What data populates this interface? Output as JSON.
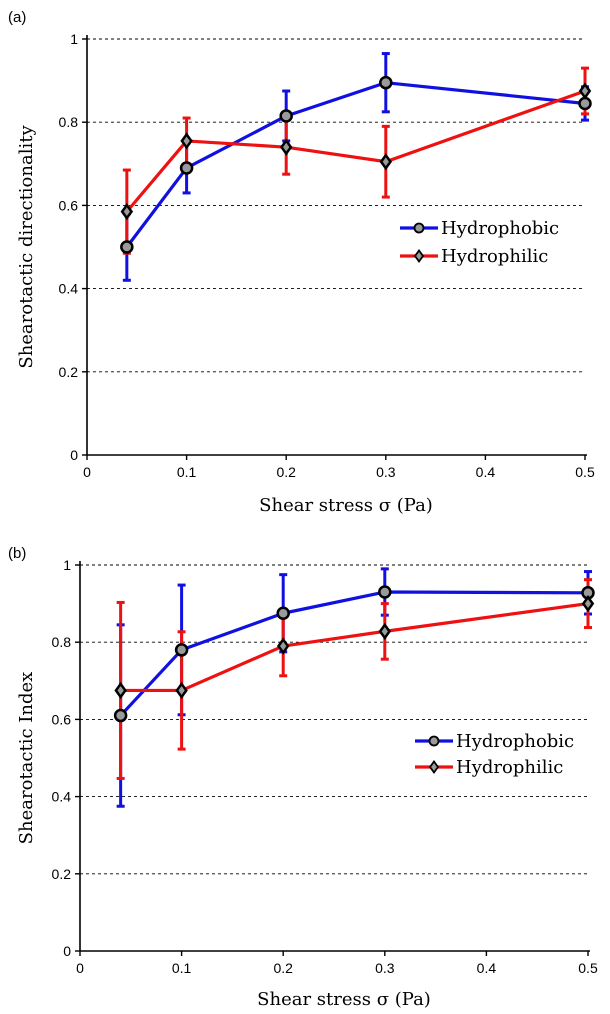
{
  "chart_data": [
    {
      "type": "line",
      "panel_label": "(a)",
      "xlabel": "Shear stress σ (Pa)",
      "ylabel": "Shearotactic directionality",
      "xlim": [
        0,
        0.5
      ],
      "ylim": [
        0,
        1
      ],
      "xticks": [
        0,
        0.1,
        0.2,
        0.3,
        0.4,
        0.5
      ],
      "xtick_labels": [
        "0",
        "0.1",
        "0.2",
        "0.3",
        "0.4",
        "0.5"
      ],
      "yticks": [
        0,
        0.2,
        0.4,
        0.6,
        0.8,
        1
      ],
      "ytick_labels": [
        "0",
        "0.2",
        "0.4",
        "0.6",
        "0.8",
        "1"
      ],
      "grid": "horizontal dashed",
      "legend_position": "right-middle",
      "series": [
        {
          "name": "Hydrophobic",
          "color": "#1010e0",
          "marker": "circle",
          "x": [
            0.04,
            0.1,
            0.2,
            0.3,
            0.5
          ],
          "y": [
            0.5,
            0.69,
            0.815,
            0.895,
            0.845
          ],
          "err": [
            0.08,
            0.06,
            0.06,
            0.07,
            0.04
          ]
        },
        {
          "name": "Hydrophilic",
          "color": "#ee1111",
          "marker": "diamond",
          "x": [
            0.04,
            0.1,
            0.2,
            0.3,
            0.5
          ],
          "y": [
            0.585,
            0.755,
            0.74,
            0.705,
            0.875
          ],
          "err": [
            0.1,
            0.055,
            0.065,
            0.085,
            0.055
          ]
        }
      ]
    },
    {
      "type": "line",
      "panel_label": "(b)",
      "xlabel": "Shear stress σ (Pa)",
      "ylabel": "Shearotactic Index",
      "xlim": [
        0,
        0.5
      ],
      "ylim": [
        0,
        1
      ],
      "xticks": [
        0,
        0.1,
        0.2,
        0.3,
        0.4,
        0.5
      ],
      "xtick_labels": [
        "0",
        "0.1",
        "0.2",
        "0.3",
        "0.4",
        "0.5"
      ],
      "yticks": [
        0,
        0.2,
        0.4,
        0.6,
        0.8,
        1
      ],
      "ytick_labels": [
        "0",
        "0.2",
        "0.4",
        "0.6",
        "0.8",
        "1"
      ],
      "grid": "horizontal dashed",
      "legend_position": "right-middle",
      "series": [
        {
          "name": "Hydrophobic",
          "color": "#1010e0",
          "marker": "circle",
          "x": [
            0.04,
            0.1,
            0.2,
            0.3,
            0.5
          ],
          "y": [
            0.61,
            0.78,
            0.875,
            0.93,
            0.928
          ],
          "err": [
            0.235,
            0.168,
            0.1,
            0.06,
            0.055
          ]
        },
        {
          "name": "Hydrophilic",
          "color": "#ee1111",
          "marker": "diamond",
          "x": [
            0.04,
            0.1,
            0.2,
            0.3,
            0.5
          ],
          "y": [
            0.675,
            0.675,
            0.79,
            0.828,
            0.9
          ],
          "err": [
            0.228,
            0.152,
            0.077,
            0.072,
            0.062
          ]
        }
      ]
    }
  ]
}
